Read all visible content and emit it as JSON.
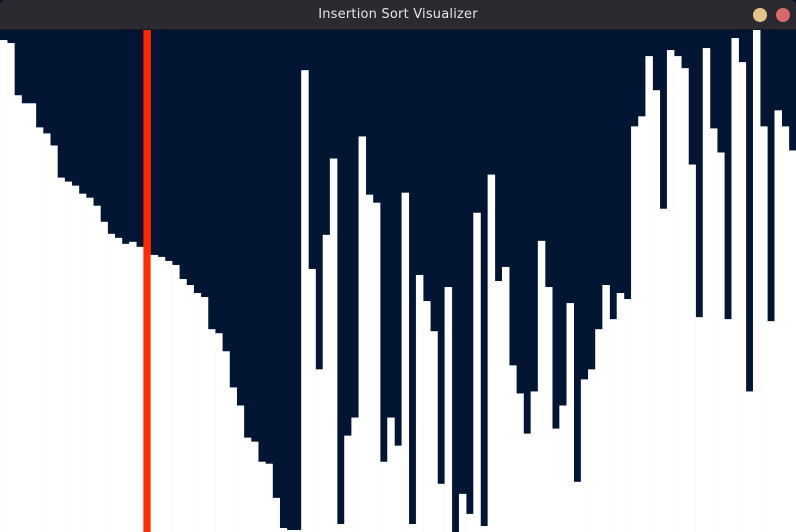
{
  "window": {
    "title": "Insertion Sort Visualizer",
    "buttons": [
      {
        "name": "minimize",
        "icon": "minimize-icon",
        "color": "#e4c48a"
      },
      {
        "name": "close",
        "icon": "close-icon",
        "color": "#d86a6a"
      }
    ]
  },
  "colors": {
    "background": "#021634",
    "bar": "#ffffff",
    "active_bar": "#ff2a00"
  },
  "chart_data": {
    "type": "bar",
    "ylim": [
      0,
      500
    ],
    "active_index": 20,
    "values": [
      490,
      487,
      435,
      427,
      427,
      403,
      397,
      385,
      353,
      349,
      345,
      337,
      333,
      325,
      309,
      297,
      293,
      287,
      289,
      284,
      501,
      276,
      274,
      270,
      266,
      252,
      246,
      238,
      234,
      202,
      198,
      180,
      144,
      126,
      94,
      90,
      70,
      68,
      34,
      4,
      2,
      2,
      460,
      262,
      162,
      296,
      372,
      8,
      96,
      114,
      394,
      336,
      328,
      70,
      114,
      86,
      338,
      8,
      256,
      230,
      200,
      48,
      244,
      0,
      38,
      18,
      318,
      6,
      356,
      250,
      264,
      166,
      138,
      98,
      140,
      290,
      244,
      103,
      126,
      228,
      50,
      152,
      162,
      202,
      246,
      212,
      238,
      232,
      404,
      414,
      474,
      440,
      322,
      480,
      474,
      462,
      366,
      214,
      482,
      402,
      378,
      212,
      492,
      468,
      140,
      500,
      404,
      210,
      420,
      404,
      380
    ]
  }
}
